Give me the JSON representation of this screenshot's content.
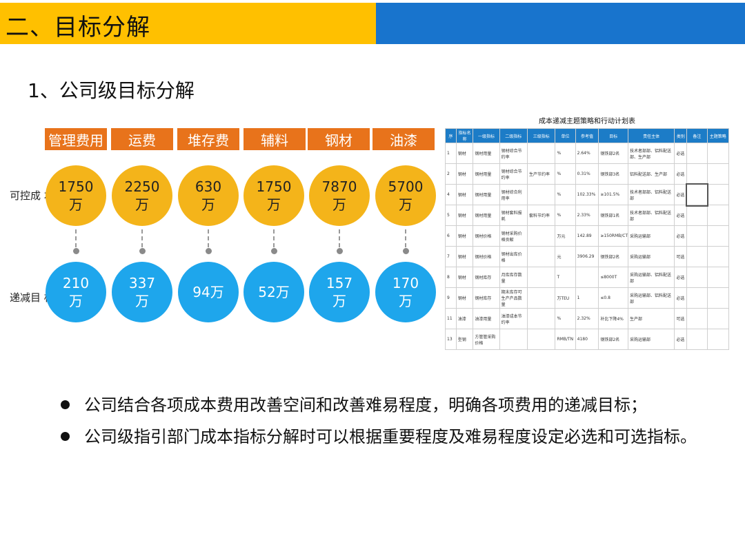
{
  "header": {
    "title": "二、目标分解"
  },
  "subtitle": "1、公司级目标分解",
  "categories": [
    "管理费用",
    "运费",
    "堆存费",
    "辅料",
    "钢材",
    "油漆"
  ],
  "row_labels": {
    "controllable": "可控成\n本",
    "reduction": "递减目\n标"
  },
  "controllable_costs": [
    "1750\n万",
    "2250\n万",
    "630\n万",
    "1750\n万",
    "7870\n万",
    "5700\n万"
  ],
  "reduction_targets": [
    "210\n万",
    "337\n万",
    "94万",
    "52万",
    "157\n万",
    "170\n万"
  ],
  "table": {
    "title": "成本递减主题策略和行动计划表",
    "headers": [
      "序",
      "指标名称",
      "一级指标",
      "二级指标",
      "三级指标",
      "单位",
      "参考值",
      "大余",
      "目标",
      "责任主体",
      "类别",
      "备注",
      "主题策略"
    ],
    "rows": [
      [
        "1",
        "钢材",
        "钢材用量",
        "钢材综合节约率",
        "",
        "%",
        "2.64%",
        "钢铁部2名",
        "技术者部部、铝料配送部、生产部",
        "必选",
        "",
        ""
      ],
      [
        "2",
        "钢材",
        "钢材用量",
        "钢材综合节约率",
        "生产节约率",
        "%",
        "0.31%",
        "钢铁部3名",
        "铝料配送部、生产部",
        "必选",
        "",
        ""
      ],
      [
        "4",
        "钢材",
        "钢材用量",
        "钢材综合利用率",
        "",
        "%",
        "102.33%",
        "≥101.5%",
        "技术者部部、铝料配送部",
        "必选",
        "",
        ""
      ],
      [
        "5",
        "钢材",
        "钢材用量",
        "钢材套料报耗",
        "套料节约率",
        "%",
        "2.33%",
        "钢铁部1名",
        "技术者部部、铝料配送部",
        "必选",
        "",
        ""
      ],
      [
        "6",
        "钢材",
        "钢材价格",
        "钢材采购价格贡献",
        "",
        "万元",
        "142.89",
        "≥150RMB/CTEU",
        "采购运输部",
        "必选",
        "",
        ""
      ],
      [
        "7",
        "钢材",
        "钢材价格",
        "钢材出库价格",
        "",
        "元",
        "3906.29",
        "钢铁部2名",
        "采购运输部",
        "可选",
        "",
        ""
      ],
      [
        "8",
        "钢材",
        "钢材库存",
        "月库库存数量",
        "",
        "T",
        "",
        "≤8000T",
        "采购运输部、铝料配送部",
        "必选",
        "",
        ""
      ],
      [
        "9",
        "钢材",
        "钢材库存",
        "期末库存可生产产品数量",
        "",
        "万TEU",
        "1",
        "≤0.8",
        "采购运输部、铝料配送部",
        "必选",
        "",
        ""
      ],
      [
        "11",
        "油漆",
        "油漆用量",
        "油漆成本节约率",
        "",
        "%",
        "2.32%",
        "补比下降4%",
        "生产部",
        "可选",
        "",
        ""
      ],
      [
        "13",
        "型钢",
        "方管管采购价格",
        "",
        "",
        "RMB/TN",
        "4180",
        "钢铁部2名",
        "采购运输部",
        "必选",
        "",
        ""
      ]
    ]
  },
  "bullets": [
    "公司结合各项成本费用改善空间和改善难易程度，明确各项费用的递减目标；",
    "公司级指引部门成本指标分解时可以根据重要程度及难易程度设定必选和可选指标。"
  ],
  "colors": {
    "header_yellow": "#FFC000",
    "header_blue": "#1874CD",
    "tag_orange": "#E8731B",
    "circle_yellow": "#F4B41A",
    "circle_blue": "#1EA6EC"
  }
}
